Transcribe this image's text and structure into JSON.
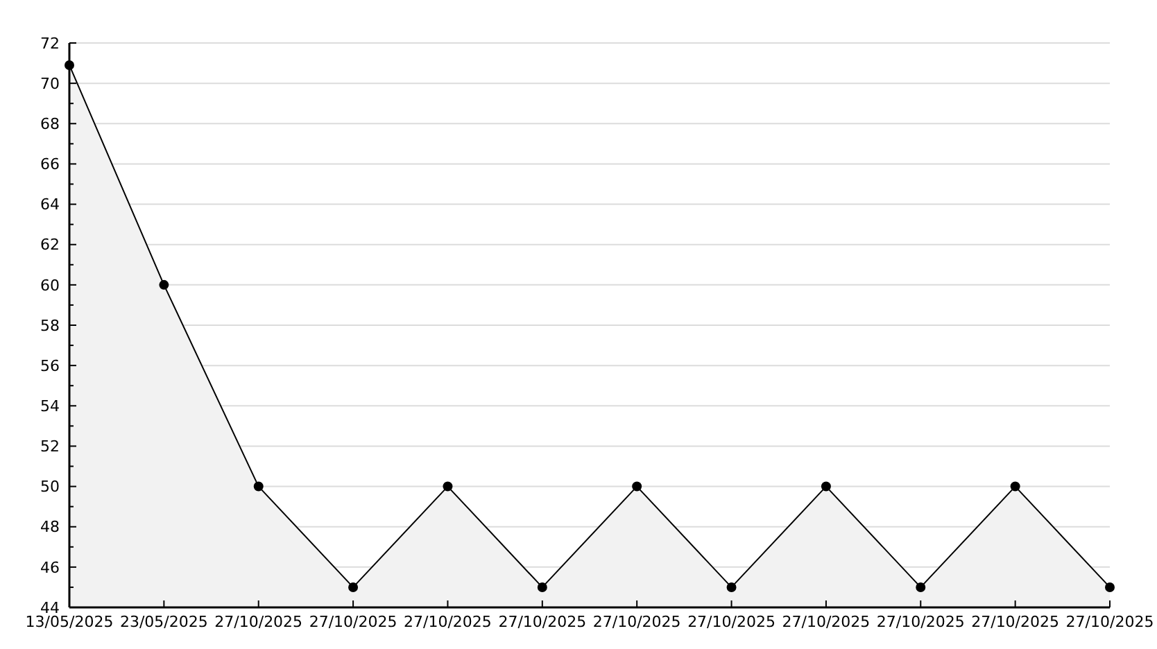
{
  "chart_data": {
    "type": "area",
    "categories": [
      "13/05/2025",
      "23/05/2025",
      "27/10/2025",
      "27/10/2025",
      "27/10/2025",
      "27/10/2025",
      "27/10/2025",
      "27/10/2025",
      "27/10/2025",
      "27/10/2025",
      "27/10/2025",
      "27/10/2025"
    ],
    "series": [
      {
        "color": "#f2f2f2",
        "values": [
          70.9,
          60,
          50,
          45,
          50,
          45,
          50,
          45,
          50,
          45,
          50,
          45
        ]
      }
    ],
    "ylim": [
      44,
      72
    ],
    "yticks": [
      44,
      {
        "value": 45,
        "label": null
      },
      46,
      {
        "value": 47,
        "label": null
      },
      48,
      {
        "value": 49,
        "label": null
      },
      50,
      {
        "value": 51,
        "label": null
      },
      52,
      {
        "value": 53,
        "label": null
      },
      54,
      {
        "value": 55,
        "label": null
      },
      56,
      {
        "value": 57,
        "label": null
      },
      58,
      {
        "value": 59,
        "label": null
      },
      60,
      {
        "value": 61,
        "label": null
      },
      62,
      {
        "value": 63,
        "label": null
      },
      64,
      {
        "value": 65,
        "label": null
      },
      66,
      {
        "value": 67,
        "label": null
      },
      68,
      {
        "value": 69,
        "label": null
      },
      70,
      {
        "value": 71,
        "label": null
      },
      72
    ],
    "grid": "y",
    "marker": "circle"
  }
}
